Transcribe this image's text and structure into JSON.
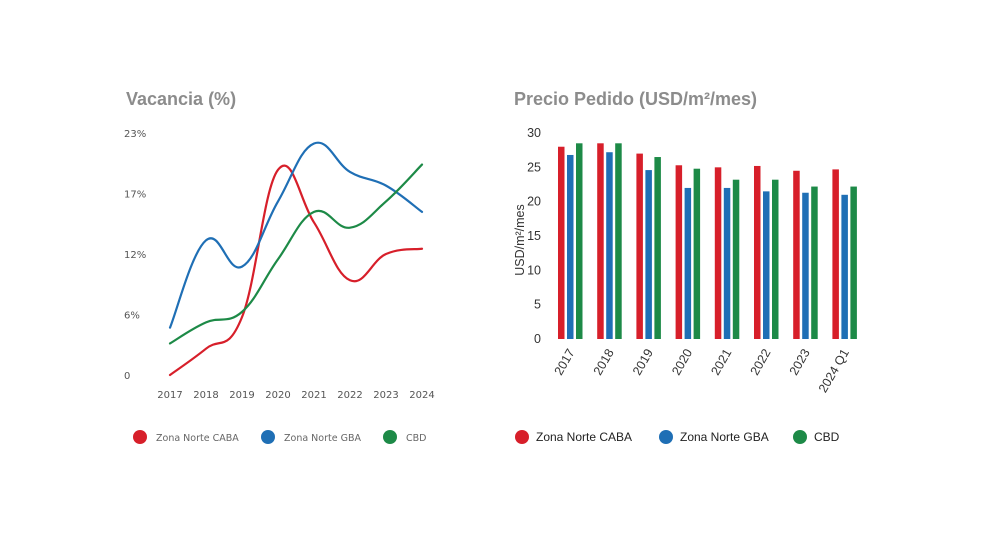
{
  "colors": {
    "red": "#d71f2a",
    "blue": "#1f6fb5",
    "green": "#1d8a47",
    "title": "#8c8c8c"
  },
  "chart_data": [
    {
      "type": "line",
      "title": "Vacancia (%)",
      "xlabel": "",
      "ylabel": "",
      "x": [
        "2017",
        "2018",
        "2019",
        "2020",
        "2021",
        "2022",
        "2023",
        "2024"
      ],
      "ytick_labels": [
        "0",
        "6%",
        "12%",
        "17%",
        "23%"
      ],
      "ylim": [
        0,
        23
      ],
      "series": [
        {
          "name": "Zona Norte CABA",
          "color": "#d71f2a",
          "values": [
            0,
            2.5,
            5.5,
            19.5,
            14.5,
            9,
            11.5,
            12
          ]
        },
        {
          "name": "Zona Norte GBA",
          "color": "#1f6fb5",
          "values": [
            4.5,
            12.8,
            10.3,
            16.5,
            22,
            19.3,
            18,
            15.5
          ]
        },
        {
          "name": "CBD",
          "color": "#1d8a47",
          "values": [
            3,
            5,
            6,
            11,
            15.5,
            14,
            16.5,
            20
          ]
        }
      ],
      "legend": "bottom",
      "grid": false
    },
    {
      "type": "bar",
      "title": "Precio Pedido (USD/m²/mes)",
      "xlabel": "",
      "ylabel": "USD/m²/mes",
      "categories": [
        "2017",
        "2018",
        "2019",
        "2020",
        "2021",
        "2022",
        "2023",
        "2024 Q1"
      ],
      "ytick_labels": [
        "0",
        "5",
        "10",
        "15",
        "20",
        "25",
        "30"
      ],
      "ylim": [
        0,
        30
      ],
      "series": [
        {
          "name": "Zona Norte CABA",
          "color": "#d71f2a",
          "values": [
            28,
            28.5,
            27,
            25.3,
            25,
            25.2,
            24.5,
            24.7
          ]
        },
        {
          "name": "Zona Norte GBA",
          "color": "#1f6fb5",
          "values": [
            26.8,
            27.2,
            24.6,
            22,
            22,
            21.5,
            21.3,
            21
          ]
        },
        {
          "name": "CBD",
          "color": "#1d8a47",
          "values": [
            28.5,
            28.5,
            26.5,
            24.8,
            23.2,
            23.2,
            22.2,
            22.2
          ]
        }
      ],
      "legend": "bottom",
      "grid": false
    }
  ]
}
